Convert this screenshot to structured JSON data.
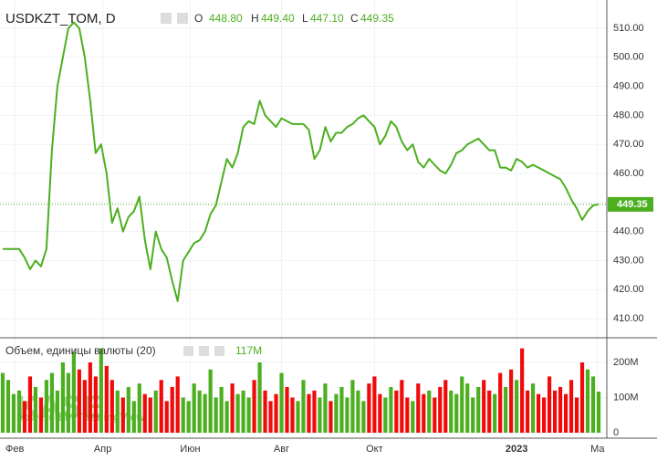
{
  "chart_data": {
    "type": "line",
    "symbol": "USDKZT_TOM, D",
    "ohlc_letters": [
      "O",
      "H",
      "L",
      "C"
    ],
    "ohlc_values": [
      "448.80",
      "449.40",
      "447.10",
      "449.35"
    ],
    "watermark": "KASE",
    "watermark_sub": "powered by TradingView",
    "line_color": "#4caf1f",
    "xlim": [
      -0.5,
      110.5
    ],
    "xticks": [
      {
        "value": 2.2,
        "label": "Фев"
      },
      {
        "value": 18.3,
        "label": "Апр"
      },
      {
        "value": 34.3,
        "label": "Июн"
      },
      {
        "value": 51,
        "label": "Авг"
      },
      {
        "value": 68,
        "label": "Окт"
      },
      {
        "value": 94,
        "label": "2023"
      },
      {
        "value": 108.8,
        "label": "Ма"
      }
    ],
    "ylim": [
      403.4,
      519.75
    ],
    "yticks": [
      {
        "value": 410,
        "label": "410.00"
      },
      {
        "value": 420,
        "label": "420.00"
      },
      {
        "value": 430,
        "label": "430.00"
      },
      {
        "value": 440,
        "label": "440.00"
      },
      {
        "value": 450,
        "label": "450.00"
      },
      {
        "value": 460,
        "label": "460.00"
      },
      {
        "value": 470,
        "label": "470.00"
      },
      {
        "value": 480,
        "label": "480.00"
      },
      {
        "value": 490,
        "label": "490.00"
      },
      {
        "value": 500,
        "label": "500.00"
      },
      {
        "value": 510,
        "label": "510.00"
      }
    ],
    "grid": true,
    "series": [
      {
        "name": "USDKZT_TOM",
        "color": "#4caf1f",
        "values": [
          434,
          434,
          434,
          434,
          431,
          427,
          430,
          428,
          434,
          468,
          490,
          500,
          510,
          512,
          510,
          500,
          485,
          467,
          470,
          460,
          443,
          448,
          440,
          445,
          447,
          452,
          437,
          427,
          440,
          434,
          431,
          423,
          416,
          430,
          433,
          436,
          437,
          440,
          446,
          449,
          457,
          465,
          462,
          467,
          476,
          478,
          477,
          485,
          480,
          478,
          476,
          479,
          478,
          477,
          477,
          477,
          475,
          465,
          468,
          476,
          471,
          474,
          474,
          476,
          477,
          479,
          480,
          478,
          476,
          470,
          473,
          478,
          476,
          471,
          468,
          470,
          464,
          462,
          465,
          463,
          461,
          460,
          463,
          467,
          468,
          470,
          471,
          472,
          470,
          468,
          468,
          462,
          462,
          461,
          465,
          464,
          462,
          463,
          462,
          461,
          460,
          459,
          458,
          455,
          451,
          448,
          444,
          447,
          449,
          449.35
        ]
      }
    ],
    "volume": {
      "title": "Объем, единицы валюты (20)",
      "last_label": "117M",
      "up_color": "#4caf1f",
      "down_color": "#f00a0a",
      "ylim": [
        -15.6,
        265
      ],
      "yticks": [
        0,
        {
          "value": 100,
          "label": "100M"
        },
        {
          "value": 200,
          "label": "200M"
        }
      ],
      "values": [
        170,
        150,
        110,
        120,
        90,
        160,
        130,
        100,
        150,
        170,
        120,
        200,
        170,
        230,
        180,
        150,
        200,
        160,
        240,
        190,
        150,
        120,
        100,
        130,
        90,
        140,
        110,
        100,
        120,
        150,
        90,
        130,
        160,
        100,
        90,
        140,
        120,
        110,
        180,
        100,
        130,
        90,
        140,
        110,
        120,
        100,
        150,
        200,
        120,
        90,
        110,
        170,
        130,
        100,
        90,
        150,
        110,
        120,
        100,
        140,
        90,
        110,
        130,
        100,
        150,
        120,
        90,
        140,
        160,
        110,
        100,
        130,
        120,
        150,
        100,
        90,
        140,
        110,
        120,
        100,
        130,
        150,
        120,
        110,
        160,
        140,
        100,
        130,
        150,
        120,
        110,
        170,
        130,
        180,
        150,
        240,
        120,
        140,
        110,
        100,
        160,
        120,
        130,
        110,
        150,
        100,
        200,
        180,
        160,
        117
      ]
    }
  }
}
